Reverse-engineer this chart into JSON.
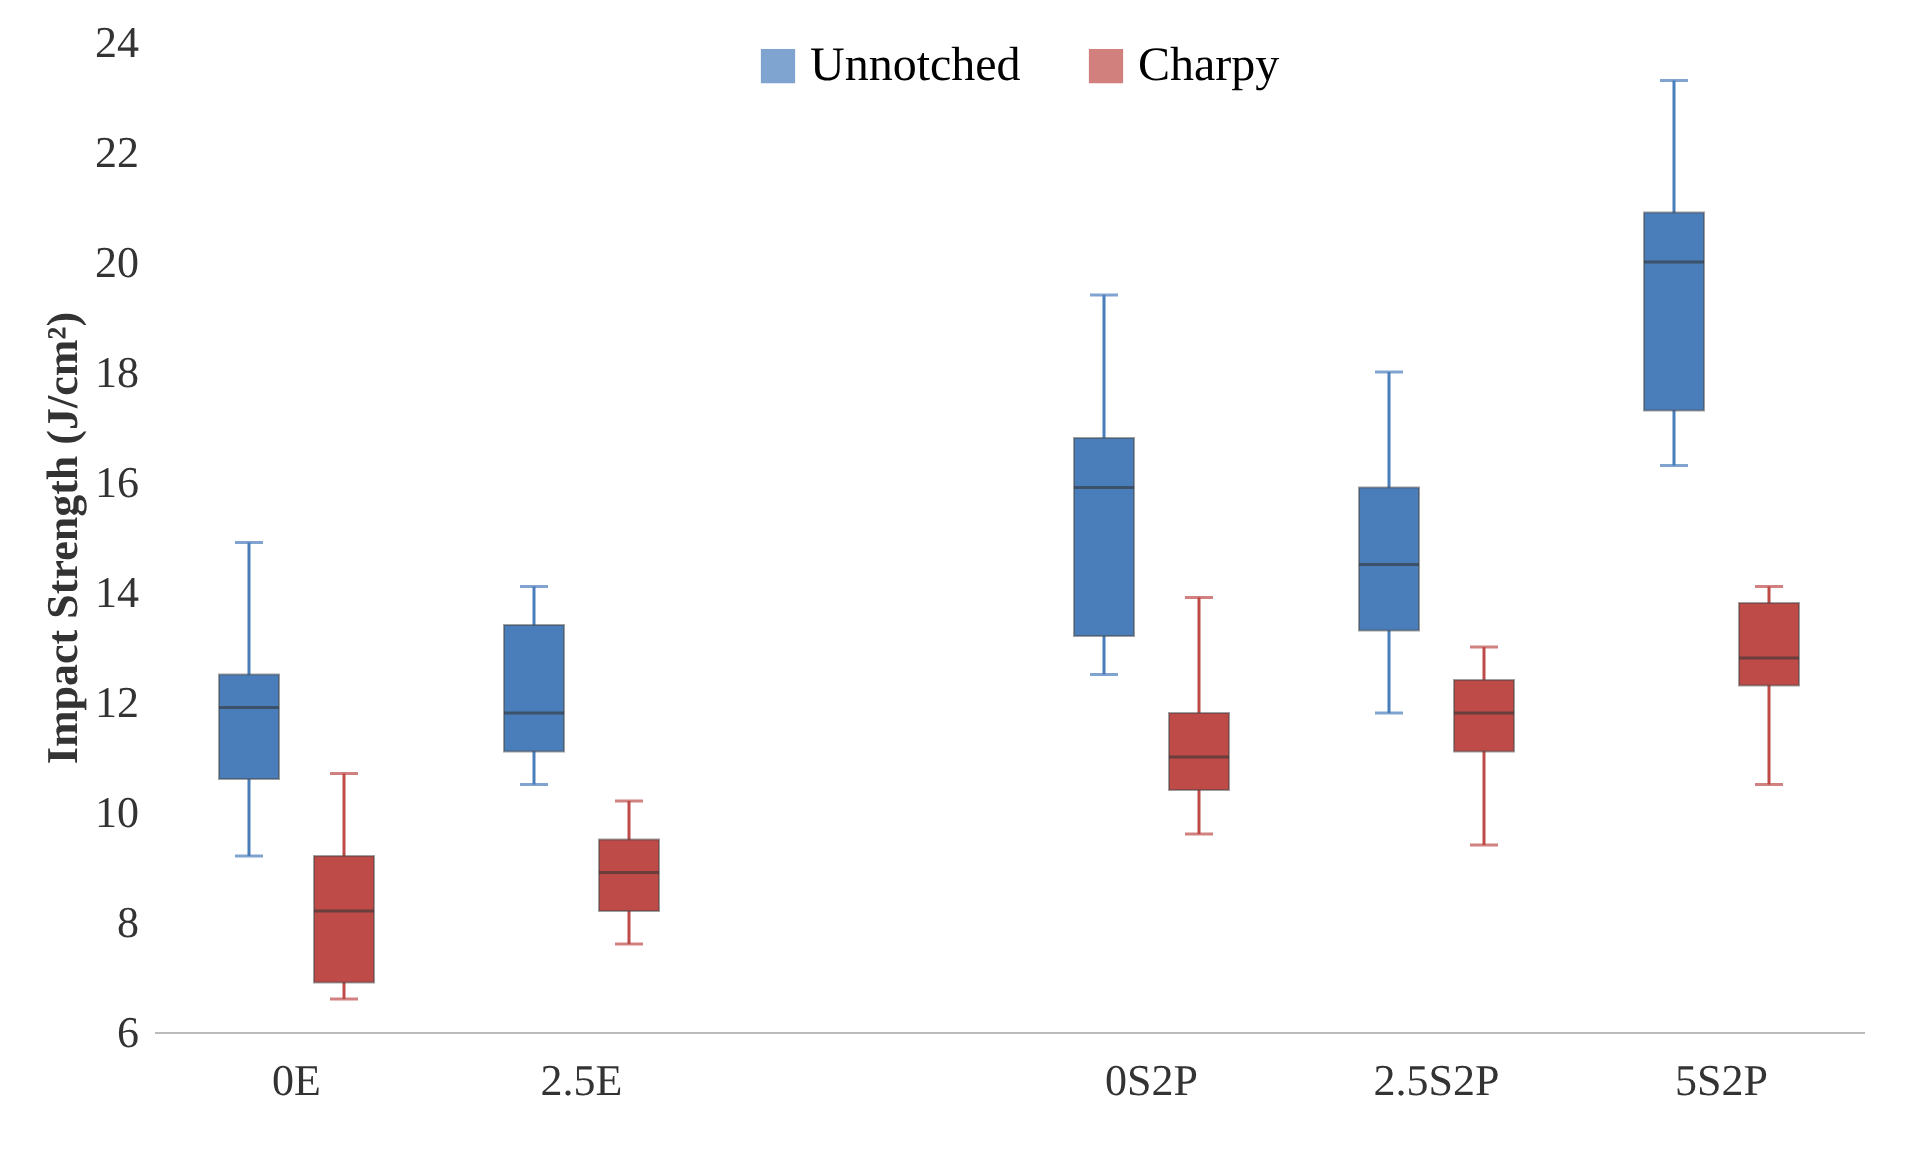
{
  "chart_data": {
    "type": "box",
    "ylabel": "Impact Strength (J/cm²)",
    "categories": [
      "0E",
      "2.5E",
      null,
      "0S2P",
      "2.5S2P",
      "5S2P"
    ],
    "ylim": [
      6,
      24
    ],
    "yticks": [
      6,
      8,
      10,
      12,
      14,
      16,
      18,
      20,
      22,
      24
    ],
    "grid": false,
    "legend": "top",
    "series": [
      {
        "name": "Unnotched",
        "color": "#4a7ebb",
        "boxes": [
          {
            "low": 9.2,
            "q1": 10.6,
            "median": 11.9,
            "q3": 12.5,
            "high": 14.9
          },
          {
            "low": 10.5,
            "q1": 11.1,
            "median": 11.8,
            "q3": 13.4,
            "high": 14.1
          },
          null,
          {
            "low": 12.5,
            "q1": 13.2,
            "median": 15.9,
            "q3": 16.8,
            "high": 19.4
          },
          {
            "low": 11.8,
            "q1": 13.3,
            "median": 14.5,
            "q3": 15.9,
            "high": 18.0
          },
          {
            "low": 16.3,
            "q1": 17.3,
            "median": 20.0,
            "q3": 20.9,
            "high": 23.3
          }
        ]
      },
      {
        "name": "Charpy",
        "color": "#be4b48",
        "boxes": [
          {
            "low": 6.6,
            "q1": 6.9,
            "median": 8.2,
            "q3": 9.2,
            "high": 10.7
          },
          {
            "low": 7.6,
            "q1": 8.2,
            "median": 8.9,
            "q3": 9.5,
            "high": 10.2
          },
          null,
          {
            "low": 9.6,
            "q1": 10.4,
            "median": 11.0,
            "q3": 11.8,
            "high": 13.9
          },
          {
            "low": 9.4,
            "q1": 11.1,
            "median": 11.8,
            "q3": 12.4,
            "high": 13.0
          },
          {
            "low": 10.5,
            "q1": 12.3,
            "median": 12.8,
            "q3": 13.8,
            "high": 14.1
          }
        ]
      }
    ]
  }
}
